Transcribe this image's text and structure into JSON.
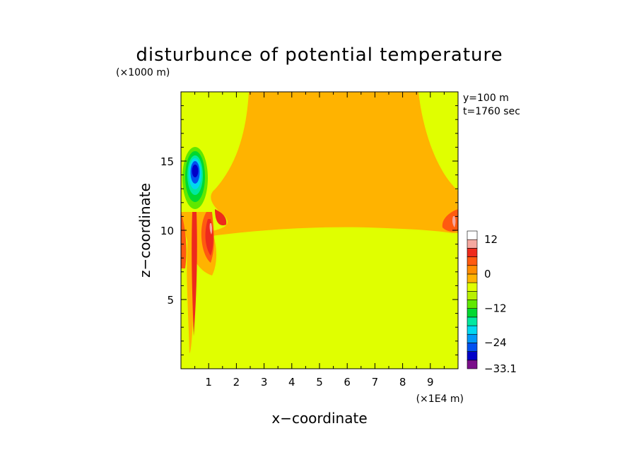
{
  "chart_data": {
    "type": "heatmap",
    "title": "disturbunce of potential temperature",
    "xlabel": "x−coordinate",
    "ylabel": "z−coordinate",
    "x_unit": "(×1E4 m)",
    "y_unit": "(×1000 m)",
    "annotations": [
      "y=100 m",
      "t=1760 sec"
    ],
    "xlim": [
      0,
      10
    ],
    "ylim": [
      0,
      20
    ],
    "x_ticks": [
      1,
      2,
      3,
      4,
      5,
      6,
      7,
      8,
      9
    ],
    "y_ticks": [
      5,
      10,
      15
    ],
    "colorbar": {
      "levels": [
        -33.1,
        -30,
        -27,
        -24,
        -21,
        -18,
        -15,
        -12,
        -9,
        -6,
        -3,
        0,
        3,
        6,
        9,
        12,
        15
      ],
      "labels": [
        "12",
        "0",
        "−12",
        "−24",
        "−33.1"
      ],
      "label_values": [
        12,
        0,
        -12,
        -24,
        -33.1
      ],
      "colors": [
        "#7a0f8a",
        "#0000c8",
        "#0050f0",
        "#0098f8",
        "#00d8f0",
        "#00e8a0",
        "#00d830",
        "#60e800",
        "#b8f000",
        "#e0ff00",
        "#ffb300",
        "#ff8c00",
        "#ff5a10",
        "#ee2a1c",
        "#f5a8a0",
        "#ffffff"
      ]
    },
    "regions": [
      {
        "name": "background",
        "value": -1.5,
        "color": "#e0ff00"
      },
      {
        "name": "upper-warm-region",
        "value": 1.5,
        "color": "#ffb300"
      },
      {
        "name": "left-cold-plume",
        "value": -30,
        "color": "#0000c8"
      },
      {
        "name": "left-warm-column",
        "value": 10.5,
        "color": "#ee2a1c"
      },
      {
        "name": "right-edge-warm-blob",
        "value": 10.5,
        "color": "#ee2a1c"
      }
    ]
  }
}
